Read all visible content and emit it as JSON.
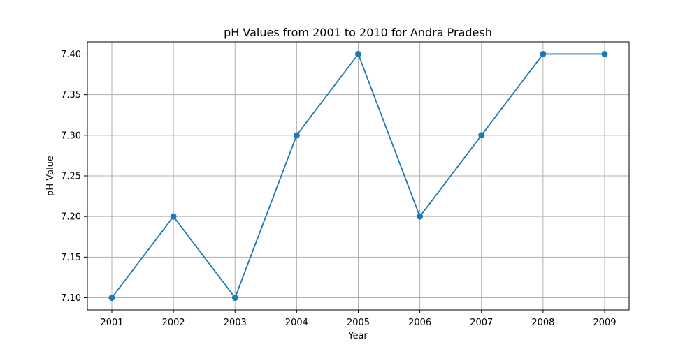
{
  "chart_data": {
    "type": "line",
    "title": "pH Values from 2001 to 2010 for Andra Pradesh",
    "xlabel": "Year",
    "ylabel": "pH Value",
    "x": [
      "2001",
      "2002",
      "2003",
      "2004",
      "2005",
      "2006",
      "2007",
      "2008",
      "2009"
    ],
    "series": [
      {
        "values": [
          7.1,
          7.2,
          7.1,
          7.3,
          7.4,
          7.2,
          7.3,
          7.4,
          7.4
        ],
        "color": "#1f77b4",
        "marker": "circle"
      }
    ],
    "yticks": [
      "7.10",
      "7.15",
      "7.20",
      "7.25",
      "7.30",
      "7.35",
      "7.40"
    ],
    "ylim": [
      7.085,
      7.415
    ],
    "grid": true,
    "legend": "none"
  }
}
